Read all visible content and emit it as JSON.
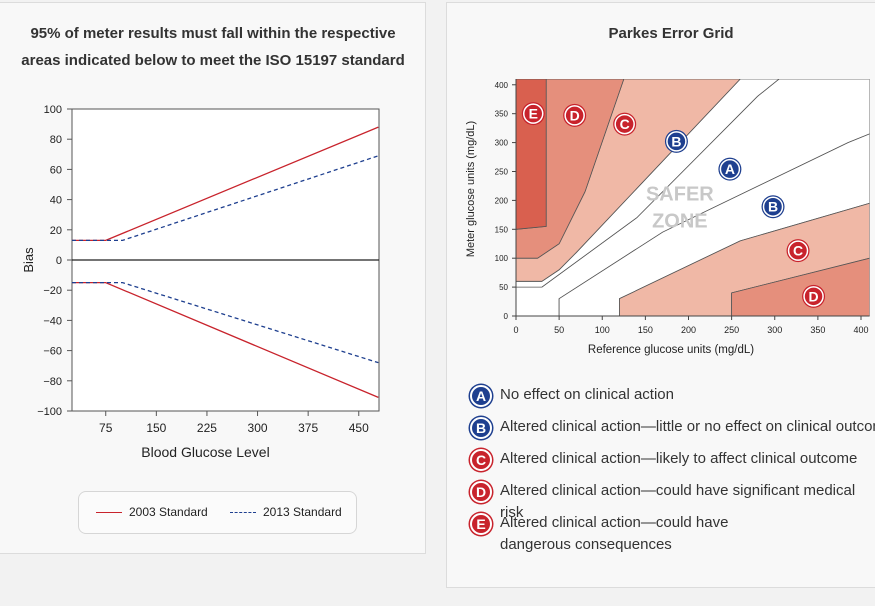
{
  "left": {
    "title_line1": "95% of meter results must fall within the respective",
    "title_line2": "areas indicated below to meet the ISO 15197 standard"
  },
  "right": {
    "title": "Parkes Error Grid"
  },
  "chart_data": [
    {
      "type": "line",
      "xlabel": "Blood Glucose Level",
      "ylabel": "Bias",
      "xlim": [
        25,
        480
      ],
      "ylim": [
        -100,
        100
      ],
      "xticks": [
        75,
        150,
        225,
        300,
        375,
        450
      ],
      "yticks": [
        100,
        80,
        60,
        40,
        20,
        0,
        -20,
        -40,
        -60,
        -80,
        -100
      ],
      "ytick_labels": [
        "100",
        "80",
        "60",
        "40",
        "20",
        "0",
        "−20",
        "−40",
        "−60",
        "−80",
        "−100"
      ],
      "grid": false,
      "legend_position": "bottom",
      "series": [
        {
          "name": "2003 Standard",
          "color": "#c8232c",
          "dash": false,
          "part": "upper",
          "x": [
            25,
            75,
            479
          ],
          "y": [
            13,
            13,
            88
          ]
        },
        {
          "name": "2003 Standard",
          "color": "#c8232c",
          "dash": false,
          "part": "lower",
          "x": [
            25,
            75,
            479
          ],
          "y": [
            -15,
            -15,
            -91
          ]
        },
        {
          "name": "2013 Standard",
          "color": "#1e3f8f",
          "dash": true,
          "part": "upper",
          "x": [
            25,
            75,
            100,
            479
          ],
          "y": [
            13,
            13,
            13,
            69
          ]
        },
        {
          "name": "2013 Standard",
          "color": "#1e3f8f",
          "dash": true,
          "part": "lower",
          "x": [
            25,
            75,
            100,
            479
          ],
          "y": [
            -15,
            -15,
            -15,
            -68
          ]
        }
      ],
      "legend": [
        {
          "label": "2003 Standard",
          "color": "#c8232c",
          "dash": false
        },
        {
          "label": "2013 Standard",
          "color": "#1e3f8f",
          "dash": true
        }
      ]
    },
    {
      "type": "area",
      "title": "Parkes Error Grid",
      "xlabel": "Reference glucose units (mg/dL)",
      "ylabel": "Meter glucose units (mg/dL)",
      "xlim": [
        0,
        410
      ],
      "ylim": [
        0,
        410
      ],
      "xticks": [
        0,
        50,
        100,
        150,
        200,
        250,
        300,
        350,
        400
      ],
      "yticks": [
        0,
        50,
        100,
        150,
        200,
        250,
        300,
        350,
        400
      ],
      "zone_colors": {
        "A": "#ffffff",
        "B": "#ffffff",
        "C": "#f0b8a6",
        "D": "#e58f7c",
        "E": "#d9604f"
      },
      "regions": [
        {
          "zone": "E",
          "points": [
            [
              0,
              150
            ],
            [
              35,
              155
            ],
            [
              35,
              410
            ],
            [
              0,
              410
            ]
          ]
        },
        {
          "zone": "D",
          "points": [
            [
              0,
              100
            ],
            [
              25,
              100
            ],
            [
              50,
              125
            ],
            [
              80,
              215
            ],
            [
              125,
              410
            ],
            [
              35,
              410
            ],
            [
              35,
              155
            ],
            [
              0,
              150
            ]
          ]
        },
        {
          "zone": "D",
          "points": [
            [
              250,
              40
            ],
            [
              410,
              100
            ],
            [
              410,
              0
            ],
            [
              250,
              0
            ]
          ]
        },
        {
          "zone": "C",
          "points": [
            [
              0,
              60
            ],
            [
              30,
              60
            ],
            [
              50,
              80
            ],
            [
              70,
              110
            ],
            [
              260,
              410
            ],
            [
              125,
              410
            ],
            [
              80,
              215
            ],
            [
              50,
              125
            ],
            [
              25,
              100
            ],
            [
              0,
              100
            ]
          ]
        },
        {
          "zone": "C",
          "points": [
            [
              120,
              30
            ],
            [
              260,
              130
            ],
            [
              410,
              195
            ],
            [
              410,
              100
            ],
            [
              250,
              40
            ],
            [
              250,
              0
            ],
            [
              120,
              0
            ]
          ]
        },
        {
          "zone": "B",
          "points": [
            [
              0,
              50
            ],
            [
              30,
              50
            ],
            [
              140,
              170
            ],
            [
              280,
              380
            ],
            [
              305,
              410
            ],
            [
              260,
              410
            ],
            [
              70,
              110
            ],
            [
              50,
              80
            ],
            [
              30,
              60
            ],
            [
              0,
              60
            ]
          ]
        },
        {
          "zone": "B",
          "points": [
            [
              50,
              0
            ],
            [
              50,
              30
            ],
            [
              170,
              145
            ],
            [
              385,
              300
            ],
            [
              410,
              315
            ],
            [
              410,
              195
            ],
            [
              260,
              130
            ],
            [
              120,
              30
            ],
            [
              120,
              0
            ]
          ]
        },
        {
          "zone": "A",
          "points": [
            [
              0,
              0
            ],
            [
              0,
              50
            ],
            [
              30,
              50
            ],
            [
              140,
              170
            ],
            [
              280,
              380
            ],
            [
              305,
              410
            ],
            [
              410,
              410
            ],
            [
              410,
              315
            ],
            [
              385,
              300
            ],
            [
              170,
              145
            ],
            [
              50,
              30
            ],
            [
              50,
              0
            ]
          ]
        }
      ],
      "zone_labels": [
        {
          "label": "E",
          "x": 20,
          "y": 350,
          "color": "#c8232c"
        },
        {
          "label": "D",
          "x": 68,
          "y": 347,
          "color": "#c8232c"
        },
        {
          "label": "C",
          "x": 126,
          "y": 332,
          "color": "#c8232c"
        },
        {
          "label": "B",
          "x": 186,
          "y": 302,
          "color": "#1e3f8f"
        },
        {
          "label": "A",
          "x": 248,
          "y": 254,
          "color": "#1e3f8f"
        },
        {
          "label": "B",
          "x": 298,
          "y": 189,
          "color": "#1e3f8f"
        },
        {
          "label": "C",
          "x": 327,
          "y": 113,
          "color": "#c8232c"
        },
        {
          "label": "D",
          "x": 345,
          "y": 34,
          "color": "#c8232c"
        }
      ],
      "annotation": {
        "line1": "SAFER",
        "line2": "ZONE",
        "x": 190,
        "y": 200
      }
    }
  ],
  "key": [
    {
      "badge": "A",
      "color": "#1e3f8f",
      "text": "No effect on clinical action"
    },
    {
      "badge": "B",
      "color": "#1e3f8f",
      "text": "Altered clinical action—little or no effect on clinical outcome"
    },
    {
      "badge": "C",
      "color": "#c8232c",
      "text": "Altered clinical action—likely to affect clinical outcome"
    },
    {
      "badge": "D",
      "color": "#c8232c",
      "text": "Altered clinical action—could have significant medical risk"
    },
    {
      "badge": "E",
      "color": "#c8232c",
      "text": "Altered clinical action—could have dangerous consequences"
    }
  ]
}
